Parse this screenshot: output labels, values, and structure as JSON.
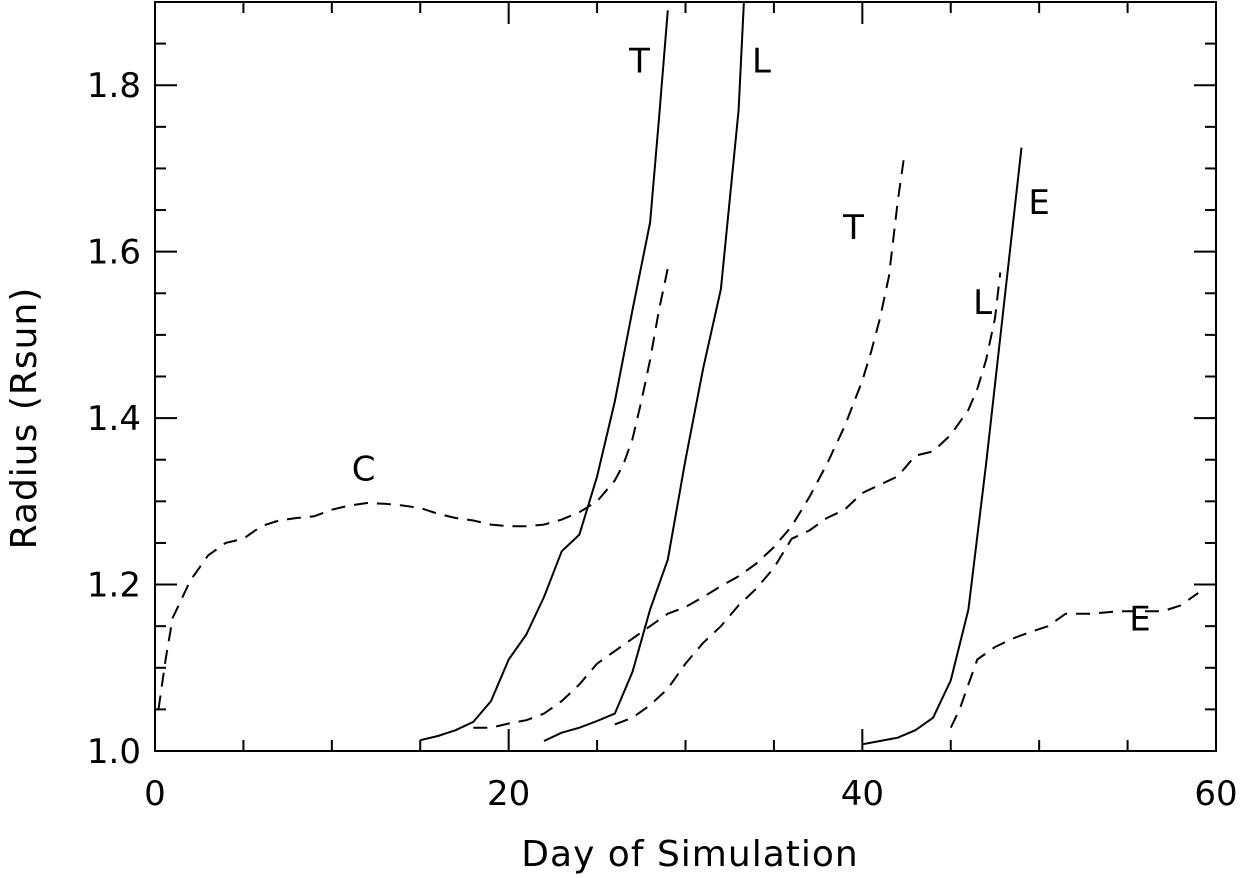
{
  "chart_data": {
    "type": "line",
    "title": "",
    "xlabel": "Day of Simulation",
    "ylabel": "Radius (Rsun)",
    "xlim": [
      0,
      60
    ],
    "ylim": [
      1.0,
      1.9
    ],
    "xticks": [
      0,
      20,
      40,
      60
    ],
    "yticks": [
      1.0,
      1.2,
      1.4,
      1.6,
      1.8
    ],
    "x_minor_step": 5,
    "y_minor_step": 0.05,
    "grid": false,
    "legend": "none",
    "color": "#000000",
    "series": [
      {
        "style": "dashed",
        "label": "C",
        "label_at": [
          11.8,
          1.325
        ],
        "points": [
          [
            0.2,
            1.05
          ],
          [
            0.6,
            1.11
          ],
          [
            1,
            1.16
          ],
          [
            2,
            1.205
          ],
          [
            3,
            1.235
          ],
          [
            4,
            1.25
          ],
          [
            5,
            1.255
          ],
          [
            6,
            1.27
          ],
          [
            7,
            1.277
          ],
          [
            8,
            1.28
          ],
          [
            9,
            1.282
          ],
          [
            10,
            1.29
          ],
          [
            11,
            1.295
          ],
          [
            12,
            1.298
          ],
          [
            13,
            1.297
          ],
          [
            14,
            1.295
          ],
          [
            15,
            1.292
          ],
          [
            16,
            1.285
          ],
          [
            17,
            1.28
          ],
          [
            18,
            1.277
          ],
          [
            19,
            1.272
          ],
          [
            20,
            1.27
          ],
          [
            21,
            1.27
          ],
          [
            22,
            1.272
          ],
          [
            23,
            1.278
          ],
          [
            24,
            1.287
          ],
          [
            25,
            1.3
          ],
          [
            26,
            1.325
          ],
          [
            26.5,
            1.345
          ],
          [
            27,
            1.375
          ],
          [
            27.5,
            1.42
          ],
          [
            28,
            1.47
          ],
          [
            28.5,
            1.53
          ],
          [
            29,
            1.58
          ]
        ]
      },
      {
        "style": "solid",
        "label": "T",
        "label_at": [
          27.4,
          1.815
        ],
        "points": [
          [
            15,
            1.013
          ],
          [
            16,
            1.018
          ],
          [
            17,
            1.025
          ],
          [
            18,
            1.035
          ],
          [
            19,
            1.06
          ],
          [
            20,
            1.11
          ],
          [
            21,
            1.14
          ],
          [
            22,
            1.185
          ],
          [
            23,
            1.24
          ],
          [
            24,
            1.26
          ],
          [
            25,
            1.33
          ],
          [
            26,
            1.42
          ],
          [
            27,
            1.53
          ],
          [
            28,
            1.635
          ],
          [
            28.5,
            1.76
          ],
          [
            29,
            1.89
          ]
        ]
      },
      {
        "style": "dashed",
        "label": "",
        "points": [
          [
            18,
            1.028
          ],
          [
            19,
            1.028
          ],
          [
            20,
            1.033
          ],
          [
            21,
            1.037
          ],
          [
            22,
            1.045
          ],
          [
            23,
            1.06
          ],
          [
            24,
            1.08
          ],
          [
            25,
            1.105
          ],
          [
            26,
            1.12
          ],
          [
            27,
            1.135
          ],
          [
            28,
            1.15
          ],
          [
            29,
            1.165
          ],
          [
            30,
            1.173
          ],
          [
            31,
            1.185
          ],
          [
            32,
            1.198
          ],
          [
            33,
            1.21
          ],
          [
            34,
            1.225
          ],
          [
            35,
            1.245
          ],
          [
            36,
            1.27
          ],
          [
            37,
            1.305
          ],
          [
            38,
            1.345
          ],
          [
            39,
            1.39
          ],
          [
            40,
            1.445
          ],
          [
            40.5,
            1.48
          ],
          [
            41,
            1.52
          ],
          [
            41.5,
            1.57
          ],
          [
            42,
            1.66
          ],
          [
            42.4,
            1.72
          ]
        ]
      },
      {
        "style": "dashed",
        "label": "T",
        "label_at": [
          39.5,
          1.615
        ],
        "points": []
      },
      {
        "style": "solid",
        "label": "L",
        "label_at": [
          34.3,
          1.815
        ],
        "points": [
          [
            22,
            1.012
          ],
          [
            23,
            1.022
          ],
          [
            24,
            1.028
          ],
          [
            25,
            1.036
          ],
          [
            26,
            1.045
          ],
          [
            27,
            1.095
          ],
          [
            28,
            1.17
          ],
          [
            29,
            1.23
          ],
          [
            30,
            1.35
          ],
          [
            31,
            1.46
          ],
          [
            32,
            1.555
          ],
          [
            33,
            1.77
          ],
          [
            33.3,
            1.9
          ]
        ]
      },
      {
        "style": "dashed",
        "label": "",
        "points": [
          [
            26,
            1.032
          ],
          [
            27,
            1.04
          ],
          [
            28,
            1.055
          ],
          [
            29,
            1.075
          ],
          [
            30,
            1.105
          ],
          [
            31,
            1.13
          ],
          [
            32,
            1.15
          ],
          [
            33,
            1.175
          ],
          [
            34,
            1.195
          ],
          [
            35,
            1.22
          ],
          [
            36,
            1.255
          ],
          [
            37,
            1.265
          ],
          [
            38,
            1.28
          ],
          [
            39,
            1.29
          ],
          [
            40,
            1.31
          ],
          [
            41,
            1.32
          ],
          [
            42,
            1.33
          ],
          [
            43,
            1.355
          ],
          [
            44,
            1.36
          ],
          [
            45,
            1.38
          ],
          [
            46,
            1.41
          ],
          [
            46.5,
            1.435
          ],
          [
            47,
            1.47
          ],
          [
            47.5,
            1.52
          ],
          [
            47.8,
            1.575
          ]
        ]
      },
      {
        "style": "dashed",
        "label": "L",
        "label_at": [
          46.8,
          1.525
        ],
        "points": []
      },
      {
        "style": "solid",
        "label": "E",
        "label_at": [
          50.0,
          1.645
        ],
        "points": [
          [
            40,
            1.008
          ],
          [
            41,
            1.012
          ],
          [
            42,
            1.016
          ],
          [
            43,
            1.025
          ],
          [
            44,
            1.04
          ],
          [
            45,
            1.085
          ],
          [
            46,
            1.17
          ],
          [
            47,
            1.345
          ],
          [
            48,
            1.535
          ],
          [
            49,
            1.725
          ]
        ]
      },
      {
        "style": "dashed",
        "label": "E",
        "label_at": [
          55.7,
          1.145
        ],
        "points": [
          [
            45,
            1.028
          ],
          [
            45.5,
            1.05
          ],
          [
            46,
            1.08
          ],
          [
            46.5,
            1.11
          ],
          [
            47.5,
            1.125
          ],
          [
            48.5,
            1.135
          ],
          [
            49.5,
            1.143
          ],
          [
            50.5,
            1.15
          ],
          [
            51.5,
            1.165
          ],
          [
            53,
            1.165
          ],
          [
            54.5,
            1.168
          ],
          [
            56,
            1.168
          ],
          [
            57,
            1.168
          ],
          [
            58,
            1.175
          ],
          [
            59,
            1.19
          ]
        ]
      }
    ]
  }
}
